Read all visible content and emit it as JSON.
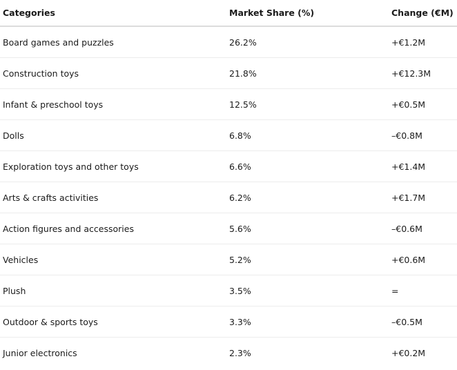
{
  "table": {
    "headers": [
      "Categories",
      "Market Share (%)",
      "Change (€M)"
    ],
    "rows": [
      [
        "Board games and puzzles",
        "26.2%",
        "+€1.2M"
      ],
      [
        "Construction toys",
        "21.8%",
        "+€12.3M"
      ],
      [
        "Infant & preschool toys",
        "12.5%",
        "+€0.5M"
      ],
      [
        "Dolls",
        "6.8%",
        "–€0.8M"
      ],
      [
        "Exploration toys and other toys",
        "6.6%",
        "+€1.4M"
      ],
      [
        "Arts & crafts activities",
        "6.2%",
        "+€1.7M"
      ],
      [
        "Action figures and accessories",
        "5.6%",
        "–€0.6M"
      ],
      [
        "Vehicles",
        "5.2%",
        "+€0.6M"
      ],
      [
        "Plush",
        "3.5%",
        "="
      ],
      [
        "Outdoor & sports toys",
        "3.3%",
        "–€0.5M"
      ],
      [
        "Junior electronics",
        "2.3%",
        "+€0.2M"
      ]
    ]
  }
}
